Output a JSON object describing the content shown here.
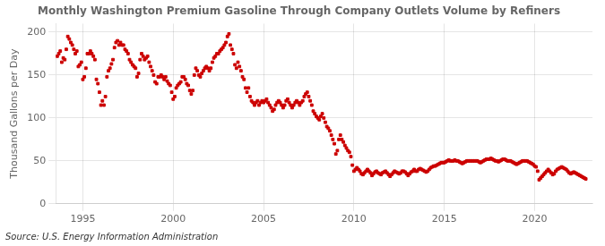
{
  "chart_data": {
    "type": "scatter",
    "title": "Monthly Washington Premium Gasoline Through Company Outlets Volume by Refiners",
    "y_label": "Thousand Gallons per Day",
    "annotation": "Source: U.S. Energy Information Administration",
    "color": "#cc0000",
    "marker": "square",
    "grid": true,
    "xlim": [
      1993.5,
      2023.2
    ],
    "xticks": [
      1995,
      2000,
      2005,
      2010,
      2015,
      2020
    ],
    "ylim": [
      0,
      210
    ],
    "yticks": [
      0,
      50,
      100,
      150,
      200
    ],
    "x": [
      1993.583,
      1993.667,
      1993.75,
      1993.833,
      1993.917,
      1994,
      1994.083,
      1994.167,
      1994.25,
      1994.333,
      1994.417,
      1994.5,
      1994.583,
      1994.667,
      1994.75,
      1994.833,
      1994.917,
      1995,
      1995.083,
      1995.167,
      1995.25,
      1995.333,
      1995.417,
      1995.5,
      1995.583,
      1995.667,
      1995.75,
      1995.833,
      1995.917,
      1996,
      1996.083,
      1996.167,
      1996.25,
      1996.333,
      1996.417,
      1996.5,
      1996.583,
      1996.667,
      1996.75,
      1996.833,
      1996.917,
      1997,
      1997.083,
      1997.167,
      1997.25,
      1997.333,
      1997.417,
      1997.5,
      1997.583,
      1997.667,
      1997.75,
      1997.833,
      1997.917,
      1998,
      1998.083,
      1998.167,
      1998.25,
      1998.333,
      1998.417,
      1998.5,
      1998.583,
      1998.667,
      1998.75,
      1998.833,
      1998.917,
      1999,
      1999.083,
      1999.167,
      1999.25,
      1999.333,
      1999.417,
      1999.5,
      1999.583,
      1999.667,
      1999.75,
      1999.833,
      1999.917,
      2000,
      2000.083,
      2000.167,
      2000.25,
      2000.333,
      2000.417,
      2000.5,
      2000.583,
      2000.667,
      2000.75,
      2000.833,
      2000.917,
      2001,
      2001.083,
      2001.167,
      2001.25,
      2001.333,
      2001.417,
      2001.5,
      2001.583,
      2001.667,
      2001.75,
      2001.833,
      2001.917,
      2002,
      2002.083,
      2002.167,
      2002.25,
      2002.333,
      2002.417,
      2002.5,
      2002.583,
      2002.667,
      2002.75,
      2002.833,
      2002.917,
      2003,
      2003.083,
      2003.167,
      2003.25,
      2003.333,
      2003.417,
      2003.5,
      2003.583,
      2003.667,
      2003.75,
      2003.833,
      2003.917,
      2004,
      2004.083,
      2004.167,
      2004.25,
      2004.333,
      2004.417,
      2004.5,
      2004.583,
      2004.667,
      2004.75,
      2004.833,
      2004.917,
      2005,
      2005.083,
      2005.167,
      2005.25,
      2005.333,
      2005.417,
      2005.5,
      2005.583,
      2005.667,
      2005.75,
      2005.833,
      2005.917,
      2006,
      2006.083,
      2006.167,
      2006.25,
      2006.333,
      2006.417,
      2006.5,
      2006.583,
      2006.667,
      2006.75,
      2006.833,
      2006.917,
      2007,
      2007.083,
      2007.167,
      2007.25,
      2007.333,
      2007.417,
      2007.5,
      2007.583,
      2007.667,
      2007.75,
      2007.833,
      2007.917,
      2008,
      2008.083,
      2008.167,
      2008.25,
      2008.333,
      2008.417,
      2008.5,
      2008.583,
      2008.667,
      2008.75,
      2008.833,
      2008.917,
      2009,
      2009.083,
      2009.167,
      2009.25,
      2009.333,
      2009.417,
      2009.5,
      2009.583,
      2009.667,
      2009.75,
      2009.833,
      2009.917,
      2010,
      2010.083,
      2010.167,
      2010.25,
      2010.333,
      2010.417,
      2010.5,
      2010.583,
      2010.667,
      2010.75,
      2010.833,
      2010.917,
      2011,
      2011.083,
      2011.167,
      2011.25,
      2011.333,
      2011.417,
      2011.5,
      2011.583,
      2011.667,
      2011.75,
      2011.833,
      2011.917,
      2012,
      2012.083,
      2012.167,
      2012.25,
      2012.333,
      2012.417,
      2012.5,
      2012.583,
      2012.667,
      2012.75,
      2012.833,
      2012.917,
      2013,
      2013.083,
      2013.167,
      2013.25,
      2013.333,
      2013.417,
      2013.5,
      2013.583,
      2013.667,
      2013.75,
      2013.833,
      2013.917,
      2014,
      2014.083,
      2014.167,
      2014.25,
      2014.333,
      2014.417,
      2014.5,
      2014.583,
      2014.667,
      2014.75,
      2014.833,
      2014.917,
      2015,
      2015.083,
      2015.167,
      2015.25,
      2015.333,
      2015.417,
      2015.5,
      2015.583,
      2015.667,
      2015.75,
      2015.833,
      2015.917,
      2016,
      2016.083,
      2016.167,
      2016.25,
      2016.333,
      2016.417,
      2016.5,
      2016.583,
      2016.667,
      2016.75,
      2016.833,
      2016.917,
      2017,
      2017.083,
      2017.167,
      2017.25,
      2017.333,
      2017.417,
      2017.5,
      2017.583,
      2017.667,
      2017.75,
      2017.833,
      2017.917,
      2018,
      2018.083,
      2018.167,
      2018.25,
      2018.333,
      2018.417,
      2018.5,
      2018.583,
      2018.667,
      2018.75,
      2018.833,
      2018.917,
      2019,
      2019.083,
      2019.167,
      2019.25,
      2019.333,
      2019.417,
      2019.5,
      2019.583,
      2019.667,
      2019.75,
      2019.833,
      2019.917,
      2020,
      2020.083,
      2020.167,
      2020.25,
      2020.333,
      2020.417,
      2020.5,
      2020.583,
      2020.667,
      2020.75,
      2020.833,
      2020.917,
      2021,
      2021.083,
      2021.167,
      2021.25,
      2021.333,
      2021.417,
      2021.5,
      2021.583,
      2021.667,
      2021.75,
      2021.833,
      2021.917,
      2022,
      2022.083,
      2022.167,
      2022.25,
      2022.333,
      2022.417,
      2022.5,
      2022.583,
      2022.667,
      2022.75,
      2022.833
    ],
    "values": [
      172,
      175,
      178,
      165,
      170,
      168,
      180,
      195,
      192,
      188,
      185,
      180,
      175,
      178,
      160,
      162,
      165,
      145,
      148,
      158,
      175,
      175,
      178,
      175,
      172,
      168,
      145,
      140,
      130,
      115,
      120,
      115,
      125,
      148,
      155,
      158,
      163,
      168,
      182,
      188,
      190,
      185,
      188,
      185,
      185,
      180,
      178,
      175,
      168,
      165,
      162,
      160,
      158,
      148,
      152,
      168,
      175,
      172,
      168,
      170,
      172,
      165,
      160,
      155,
      150,
      142,
      140,
      148,
      148,
      150,
      148,
      145,
      148,
      143,
      140,
      138,
      130,
      122,
      125,
      135,
      138,
      140,
      142,
      148,
      148,
      145,
      140,
      138,
      132,
      128,
      132,
      150,
      158,
      155,
      150,
      148,
      152,
      155,
      158,
      160,
      158,
      155,
      158,
      165,
      170,
      172,
      175,
      175,
      178,
      180,
      182,
      185,
      188,
      195,
      198,
      185,
      180,
      175,
      162,
      158,
      165,
      160,
      155,
      148,
      145,
      135,
      130,
      135,
      125,
      120,
      118,
      115,
      118,
      120,
      115,
      118,
      120,
      118,
      120,
      122,
      118,
      115,
      112,
      108,
      110,
      115,
      118,
      120,
      118,
      115,
      112,
      115,
      120,
      122,
      118,
      115,
      112,
      115,
      118,
      120,
      118,
      115,
      118,
      120,
      125,
      128,
      130,
      125,
      120,
      115,
      108,
      105,
      102,
      100,
      98,
      102,
      105,
      100,
      95,
      90,
      88,
      85,
      80,
      75,
      70,
      58,
      62,
      75,
      80,
      75,
      72,
      68,
      65,
      62,
      60,
      55,
      45,
      38,
      40,
      42,
      40,
      38,
      35,
      34,
      36,
      38,
      40,
      38,
      36,
      33,
      35,
      37,
      38,
      36,
      35,
      34,
      36,
      37,
      38,
      36,
      34,
      32,
      34,
      36,
      38,
      37,
      36,
      35,
      36,
      38,
      38,
      37,
      35,
      33,
      35,
      37,
      38,
      40,
      38,
      38,
      40,
      41,
      40,
      39,
      38,
      37,
      38,
      40,
      42,
      43,
      44,
      44,
      45,
      46,
      47,
      48,
      48,
      48,
      49,
      50,
      51,
      50,
      50,
      50,
      51,
      50,
      50,
      49,
      48,
      47,
      48,
      49,
      50,
      50,
      50,
      50,
      50,
      50,
      50,
      50,
      49,
      48,
      49,
      50,
      51,
      52,
      52,
      52,
      53,
      52,
      51,
      50,
      50,
      49,
      50,
      51,
      52,
      52,
      51,
      50,
      50,
      50,
      49,
      48,
      47,
      46,
      47,
      48,
      49,
      50,
      50,
      50,
      50,
      49,
      48,
      47,
      46,
      44,
      43,
      38,
      28,
      30,
      32,
      34,
      36,
      38,
      40,
      38,
      36,
      34,
      35,
      38,
      40,
      41,
      42,
      43,
      42,
      41,
      40,
      38,
      36,
      35,
      36,
      37,
      36,
      35,
      34,
      33,
      32,
      31,
      30,
      29
    ]
  }
}
